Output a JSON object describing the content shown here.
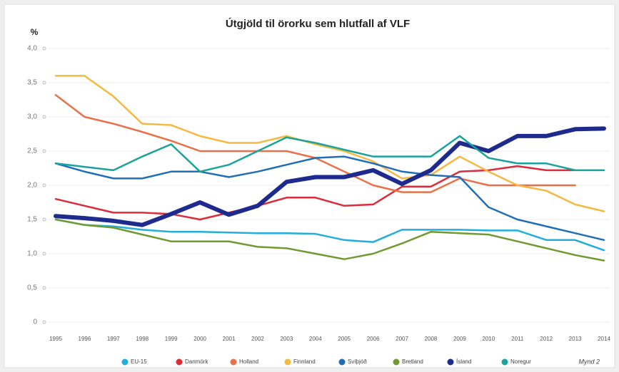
{
  "chart_data": {
    "type": "line",
    "title": "Útgjöld til örorku sem hlutfall af VLF",
    "ylabel": "%",
    "annotation": "Mynd 2",
    "categories": [
      "1995",
      "1996",
      "1997",
      "1998",
      "1999",
      "2000",
      "2001",
      "2002",
      "2003",
      "2004",
      "2005",
      "2006",
      "2007",
      "2008",
      "2009",
      "2010",
      "2011",
      "2012",
      "2013",
      "2014"
    ],
    "ylim": [
      0,
      4
    ],
    "yticks": [
      0,
      {
        "value": 0.5,
        "label": "0,5"
      },
      {
        "value": 1,
        "label": "1,0"
      },
      {
        "value": 1.5,
        "label": "1,5"
      },
      {
        "value": 2,
        "label": "2,0"
      },
      {
        "value": 2.5,
        "label": "2,5"
      },
      {
        "value": 3,
        "label": "3,0"
      },
      {
        "value": 3.5,
        "label": "3,5"
      },
      {
        "value": 4,
        "label": "4,0"
      }
    ],
    "grid": true,
    "series": [
      {
        "name": "EU-15",
        "color": "#22aedb",
        "values": [
          1.5,
          1.42,
          1.4,
          1.35,
          1.32,
          1.32,
          1.31,
          1.3,
          1.3,
          1.29,
          1.2,
          1.17,
          1.35,
          1.35,
          1.35,
          1.34,
          1.34,
          1.2,
          1.2,
          1.05
        ]
      },
      {
        "name": "Danmörk",
        "color": "#dc2b3b",
        "values": [
          1.8,
          1.7,
          1.6,
          1.6,
          1.58,
          1.5,
          1.6,
          1.7,
          1.82,
          1.82,
          1.7,
          1.72,
          1.98,
          1.98,
          2.2,
          2.22,
          2.28,
          2.22,
          2.22,
          null
        ]
      },
      {
        "name": "Holland",
        "color": "#e8714a",
        "values": [
          3.32,
          3.0,
          2.9,
          2.78,
          2.65,
          2.5,
          2.5,
          2.5,
          2.5,
          2.4,
          2.2,
          2.0,
          1.9,
          1.9,
          2.1,
          2.0,
          2.0,
          2.0,
          2.0,
          null
        ]
      },
      {
        "name": "Finnland",
        "color": "#f5b942",
        "values": [
          3.6,
          3.6,
          3.3,
          2.9,
          2.88,
          2.72,
          2.62,
          2.62,
          2.72,
          2.6,
          2.5,
          2.35,
          2.1,
          2.15,
          2.42,
          2.2,
          2.0,
          1.92,
          1.72,
          1.62
        ]
      },
      {
        "name": "Svíþjóð",
        "color": "#1f6fb8",
        "values": [
          2.32,
          2.2,
          2.1,
          2.1,
          2.2,
          2.2,
          2.12,
          2.2,
          2.3,
          2.4,
          2.42,
          2.32,
          2.2,
          2.15,
          2.12,
          1.68,
          1.5,
          1.4,
          1.3,
          1.2
        ]
      },
      {
        "name": "Bretland",
        "color": "#6f9a2f",
        "values": [
          1.5,
          1.42,
          1.38,
          1.28,
          1.18,
          1.18,
          1.18,
          1.1,
          1.08,
          1.0,
          0.92,
          1.0,
          1.15,
          1.32,
          1.3,
          1.28,
          1.18,
          1.08,
          0.98,
          0.9
        ]
      },
      {
        "name": "Ísland",
        "color": "#1e2a8e",
        "width": 6,
        "values": [
          1.55,
          1.52,
          1.48,
          1.42,
          1.58,
          1.75,
          1.57,
          1.7,
          2.05,
          2.12,
          2.12,
          2.22,
          2.02,
          2.22,
          2.62,
          2.5,
          2.72,
          2.72,
          2.82,
          2.83
        ]
      },
      {
        "name": "Noregur",
        "color": "#1aa39a",
        "values": [
          2.32,
          2.27,
          2.22,
          2.42,
          2.6,
          2.2,
          2.3,
          2.5,
          2.7,
          2.62,
          2.52,
          2.42,
          2.42,
          2.42,
          2.72,
          2.4,
          2.32,
          2.32,
          2.22,
          2.22
        ]
      }
    ]
  }
}
